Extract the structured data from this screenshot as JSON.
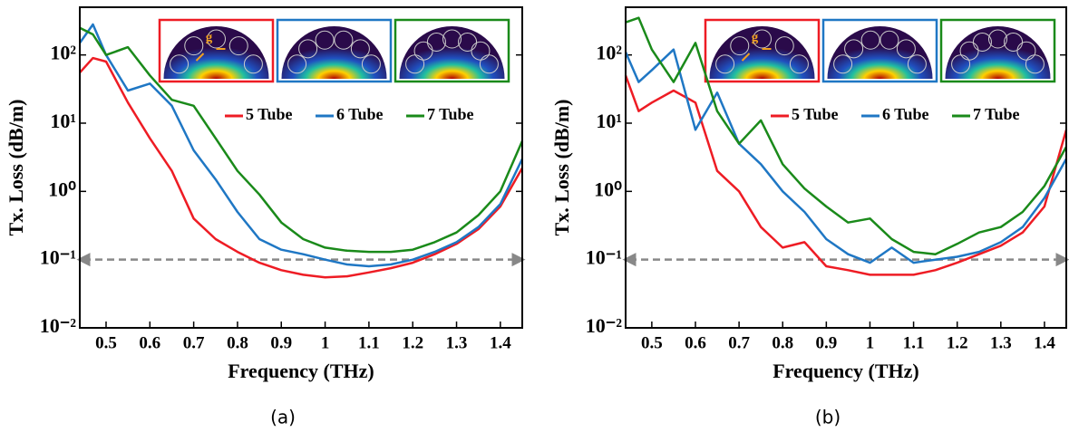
{
  "chart_data": [
    {
      "type": "line",
      "caption": "(a)",
      "xlabel": "Frequency (THz)",
      "ylabel": "Tx. Loss (dB/m)",
      "log_y": true,
      "xlim": [
        0.44,
        1.45
      ],
      "ylim": [
        0.01,
        500
      ],
      "xticks": [
        0.5,
        0.6,
        0.7,
        0.8,
        0.9,
        1,
        1.1,
        1.2,
        1.3,
        1.4
      ],
      "yticks": [
        {
          "value": 0.01,
          "label": "10⁻²"
        },
        {
          "value": 0.1,
          "label": "10⁻¹"
        },
        {
          "value": 1,
          "label": "10⁰"
        },
        {
          "value": 10,
          "label": "10¹"
        },
        {
          "value": 100,
          "label": "10²"
        }
      ],
      "reference_line": 0.1,
      "inset_label": "g",
      "x": [
        0.44,
        0.47,
        0.5,
        0.55,
        0.6,
        0.65,
        0.7,
        0.75,
        0.8,
        0.85,
        0.9,
        0.95,
        1.0,
        1.05,
        1.1,
        1.15,
        1.2,
        1.25,
        1.3,
        1.35,
        1.4,
        1.45
      ],
      "series": [
        {
          "name": "5 Tube",
          "color": "#ee1c24",
          "values": [
            55,
            90,
            80,
            20,
            6,
            2,
            0.4,
            0.2,
            0.13,
            0.09,
            0.07,
            0.06,
            0.055,
            0.057,
            0.065,
            0.075,
            0.09,
            0.12,
            0.17,
            0.28,
            0.6,
            2.2
          ]
        },
        {
          "name": "6 Tube",
          "color": "#1f77c4",
          "values": [
            150,
            280,
            100,
            30,
            38,
            18,
            4,
            1.5,
            0.5,
            0.2,
            0.14,
            0.12,
            0.1,
            0.085,
            0.08,
            0.085,
            0.1,
            0.13,
            0.18,
            0.3,
            0.65,
            3
          ]
        },
        {
          "name": "7 Tube",
          "color": "#1a8a1a",
          "values": [
            250,
            200,
            100,
            130,
            50,
            22,
            18,
            6,
            2,
            0.9,
            0.35,
            0.2,
            0.15,
            0.135,
            0.13,
            0.13,
            0.14,
            0.18,
            0.25,
            0.45,
            1.0,
            5.5
          ]
        }
      ]
    },
    {
      "type": "line",
      "caption": "(b)",
      "xlabel": "Frequency (THz)",
      "ylabel": "Tx. Loss (dB/m)",
      "log_y": true,
      "xlim": [
        0.44,
        1.45
      ],
      "ylim": [
        0.01,
        500
      ],
      "xticks": [
        0.5,
        0.6,
        0.7,
        0.8,
        0.9,
        1,
        1.1,
        1.2,
        1.3,
        1.4
      ],
      "yticks": [
        {
          "value": 0.01,
          "label": "10⁻²"
        },
        {
          "value": 0.1,
          "label": "10⁻¹"
        },
        {
          "value": 1,
          "label": "10⁰"
        },
        {
          "value": 10,
          "label": "10¹"
        },
        {
          "value": 100,
          "label": "10²"
        }
      ],
      "reference_line": 0.1,
      "inset_label": "g",
      "x": [
        0.44,
        0.47,
        0.5,
        0.55,
        0.6,
        0.65,
        0.7,
        0.75,
        0.8,
        0.85,
        0.9,
        0.95,
        1.0,
        1.05,
        1.1,
        1.15,
        1.2,
        1.25,
        1.3,
        1.35,
        1.4,
        1.45
      ],
      "series": [
        {
          "name": "5 Tube",
          "color": "#ee1c24",
          "values": [
            50,
            15,
            20,
            30,
            20,
            2,
            1.0,
            0.3,
            0.15,
            0.18,
            0.08,
            0.07,
            0.06,
            0.06,
            0.06,
            0.07,
            0.09,
            0.12,
            0.16,
            0.25,
            0.6,
            8
          ]
        },
        {
          "name": "6 Tube",
          "color": "#1f77c4",
          "values": [
            110,
            40,
            60,
            120,
            8,
            28,
            5,
            2.5,
            1.0,
            0.5,
            0.2,
            0.12,
            0.09,
            0.15,
            0.09,
            0.1,
            0.11,
            0.13,
            0.18,
            0.3,
            0.8,
            3
          ]
        },
        {
          "name": "7 Tube",
          "color": "#1a8a1a",
          "values": [
            300,
            350,
            120,
            40,
            150,
            15,
            5,
            11,
            2.5,
            1.1,
            0.6,
            0.35,
            0.4,
            0.2,
            0.13,
            0.12,
            0.17,
            0.25,
            0.3,
            0.5,
            1.2,
            4.5
          ]
        }
      ]
    }
  ]
}
